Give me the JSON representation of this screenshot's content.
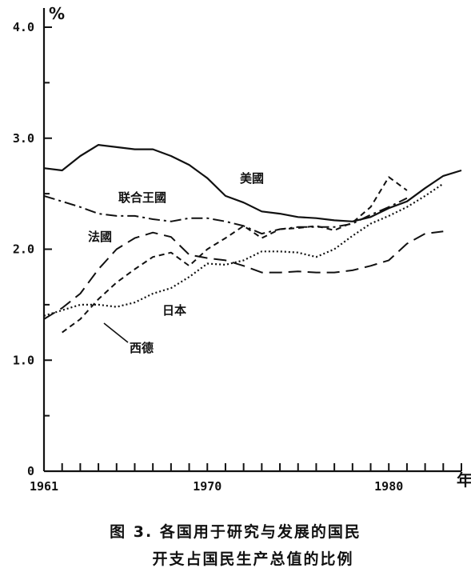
{
  "chart_data": {
    "type": "line",
    "unit": "%",
    "xunit": "年",
    "xlim": [
      1961,
      1984
    ],
    "ylim": [
      0,
      4.0
    ],
    "x_ticks": [
      1961,
      1970,
      1980
    ],
    "x_tick_labels": [
      "1961",
      "1970",
      "1980"
    ],
    "y_ticks": [
      0,
      1.0,
      2.0,
      3.0,
      4.0
    ],
    "y_tick_labels": [
      "0",
      "1.0",
      "2.0",
      "3.0",
      "4.0"
    ],
    "grid": false,
    "series": [
      {
        "name": "美國",
        "style": "solid",
        "x": [
          1961,
          1962,
          1963,
          1964,
          1965,
          1966,
          1967,
          1968,
          1969,
          1970,
          1971,
          1972,
          1973,
          1974,
          1975,
          1976,
          1977,
          1978,
          1979,
          1980,
          1981,
          1982,
          1983,
          1984
        ],
        "y": [
          2.73,
          2.71,
          2.84,
          2.94,
          2.92,
          2.9,
          2.9,
          2.84,
          2.76,
          2.64,
          2.48,
          2.42,
          2.34,
          2.32,
          2.29,
          2.28,
          2.26,
          2.25,
          2.29,
          2.37,
          2.43,
          2.55,
          2.66,
          2.71
        ]
      },
      {
        "name": "联合王國",
        "style": "dash-dot",
        "x": [
          1961,
          1962,
          1963,
          1964,
          1965,
          1966,
          1967,
          1968,
          1969,
          1970,
          1971,
          1972,
          1973,
          1974,
          1975,
          1976,
          1977,
          1978,
          1979,
          1980,
          1981
        ],
        "y": [
          2.48,
          2.43,
          2.38,
          2.32,
          2.3,
          2.3,
          2.27,
          2.25,
          2.28,
          2.28,
          2.25,
          2.21,
          2.14,
          2.18,
          2.2,
          2.2,
          2.2,
          2.23,
          2.31,
          2.38,
          2.46
        ]
      },
      {
        "name": "法國",
        "style": "dash",
        "x": [
          1961,
          1962,
          1963,
          1964,
          1965,
          1966,
          1967,
          1968,
          1969,
          1970,
          1971,
          1972,
          1973,
          1974,
          1975,
          1976,
          1977,
          1978,
          1979,
          1980,
          1981,
          1982,
          1983
        ],
        "y": [
          1.37,
          1.47,
          1.6,
          1.82,
          2.0,
          2.1,
          2.15,
          2.11,
          1.95,
          1.92,
          1.9,
          1.85,
          1.79,
          1.79,
          1.8,
          1.79,
          1.79,
          1.81,
          1.85,
          1.9,
          2.05,
          2.14,
          2.16
        ]
      },
      {
        "name": "日本",
        "style": "dotted",
        "x": [
          1961,
          1962,
          1963,
          1964,
          1965,
          1966,
          1967,
          1968,
          1969,
          1970,
          1971,
          1972,
          1973,
          1974,
          1975,
          1976,
          1977,
          1978,
          1979,
          1980,
          1981,
          1982,
          1983
        ],
        "y": [
          1.4,
          1.45,
          1.5,
          1.5,
          1.48,
          1.52,
          1.6,
          1.65,
          1.75,
          1.87,
          1.86,
          1.9,
          1.98,
          1.98,
          1.97,
          1.93,
          2.0,
          2.12,
          2.23,
          2.3,
          2.38,
          2.48,
          2.59
        ]
      },
      {
        "name": "西德",
        "style": "dash-short",
        "x": [
          1962,
          1963,
          1964,
          1965,
          1966,
          1967,
          1968,
          1969,
          1970,
          1971,
          1972,
          1973,
          1974,
          1975,
          1976,
          1977,
          1978,
          1979,
          1980,
          1981
        ],
        "y": [
          1.25,
          1.37,
          1.55,
          1.7,
          1.82,
          1.93,
          1.97,
          1.85,
          2.0,
          2.1,
          2.21,
          2.1,
          2.18,
          2.19,
          2.21,
          2.17,
          2.24,
          2.38,
          2.65,
          2.53
        ]
      }
    ]
  },
  "caption": {
    "line1": "图 3.  各国用于研究与发展的国民",
    "line2": "开支占国民生产总值的比例"
  }
}
